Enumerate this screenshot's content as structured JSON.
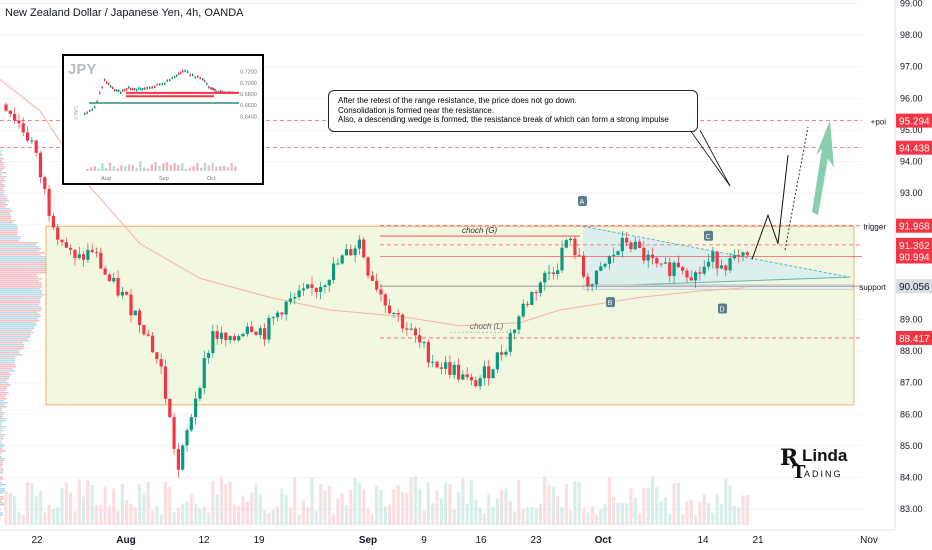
{
  "header": {
    "title": "New Zealand Dollar / Japanese Yen, 4h, OANDA"
  },
  "annotation": {
    "line1": "After the retest of the range resistance, the price does not go down.",
    "line2": "Consolidation is formed near the resistance.",
    "line3": "Also, a descending wedge is formed, the resistance break of which can form a strong impulse"
  },
  "inset": {
    "title": "JPY",
    "side_label": "DAILY",
    "y_ticks": [
      "0.7200",
      "0.7000",
      "0.6800",
      "0.6600",
      "0.6400"
    ],
    "x_ticks": [
      "Aug",
      "Sep",
      "Oct"
    ]
  },
  "logo": {
    "text_top": "Linda",
    "text_bottom": "ADING",
    "letters": "RT"
  },
  "colors": {
    "up": "#089981",
    "down": "#f23645",
    "zone_fill": "#f2f8df",
    "zone_border": "#f5b06e",
    "wedge_fill": "#d6ecef",
    "support_fill": "#e9eef0",
    "label_red": "#f23645",
    "label_dark": "#131722",
    "marker_blue": "#5d7b8a",
    "arrow_green": "#7cc9a6"
  },
  "chart_data": {
    "type": "candlestick",
    "title": "New Zealand Dollar / Japanese Yen, 4h, OANDA",
    "y_axis": {
      "range": [
        82.5,
        99.2
      ],
      "ticks": [
        83,
        84,
        85,
        86,
        87,
        88,
        89,
        90,
        91,
        92,
        93,
        94,
        95,
        96,
        97,
        98,
        99
      ]
    },
    "x_axis": {
      "ticks": [
        "22",
        "Aug",
        "12",
        "19",
        "Sep",
        "9",
        "16",
        "23",
        "Oct",
        "14",
        "21",
        "Nov"
      ]
    },
    "price_path": [
      [
        0,
        95.8
      ],
      [
        1,
        95.4
      ],
      [
        3,
        94.6
      ],
      [
        5,
        92.5
      ],
      [
        6,
        91.8
      ],
      [
        8,
        90.8
      ],
      [
        10,
        91.2
      ],
      [
        12,
        90.2
      ],
      [
        14,
        89.6
      ],
      [
        16,
        88.8
      ],
      [
        18,
        87.4
      ],
      [
        20,
        84.2
      ],
      [
        22,
        86.6
      ],
      [
        24,
        88.6
      ],
      [
        26,
        88.2
      ],
      [
        28,
        88.9
      ],
      [
        30,
        88.6
      ],
      [
        32,
        89.4
      ],
      [
        34,
        89.7
      ],
      [
        36,
        90.0
      ],
      [
        38,
        90.6
      ],
      [
        40,
        91.2
      ],
      [
        41,
        91.5
      ],
      [
        42,
        90.6
      ],
      [
        44,
        89.6
      ],
      [
        46,
        88.9
      ],
      [
        48,
        88.2
      ],
      [
        50,
        87.6
      ],
      [
        52,
        87.4
      ],
      [
        54,
        86.9
      ],
      [
        56,
        87.4
      ],
      [
        58,
        88.2
      ],
      [
        60,
        89.4
      ],
      [
        62,
        90.2
      ],
      [
        64,
        90.8
      ],
      [
        65,
        91.5
      ],
      [
        66,
        91.2
      ],
      [
        67,
        90.4
      ],
      [
        68,
        90.1
      ],
      [
        70,
        90.9
      ],
      [
        72,
        91.5
      ],
      [
        74,
        91.0
      ],
      [
        76,
        90.5
      ],
      [
        78,
        90.8
      ],
      [
        80,
        90.4
      ],
      [
        82,
        90.9
      ],
      [
        84,
        90.8
      ],
      [
        86,
        90.9
      ]
    ],
    "horizontal_levels": [
      {
        "label": "95.294",
        "value": 95.294,
        "note": "+poi",
        "style": "dashed-red"
      },
      {
        "label": "94.438",
        "value": 94.438,
        "style": "dashed-red"
      },
      {
        "label": "91.968",
        "value": 91.968,
        "note": "trigger",
        "style": "dashed-red"
      },
      {
        "label": "91.362",
        "value": 91.362,
        "style": "dashed-red"
      },
      {
        "label": "90.994",
        "value": 90.994,
        "style": "solid-red"
      },
      {
        "label": "90.056",
        "value": 90.056,
        "note": "support",
        "style": "dark"
      },
      {
        "label": "88.417",
        "value": 88.417,
        "style": "dashed-red"
      }
    ],
    "range_zone": {
      "low": 86.3,
      "high": 91.95
    },
    "structure_labels": [
      {
        "text": "choch (G)",
        "value": 91.64
      },
      {
        "text": "choch (L)",
        "value": 88.6
      }
    ],
    "wedge_points": [
      "A",
      "B",
      "C",
      "D"
    ],
    "volume_profile": true,
    "projection": "bullish breakout toward +poi 95.294"
  }
}
